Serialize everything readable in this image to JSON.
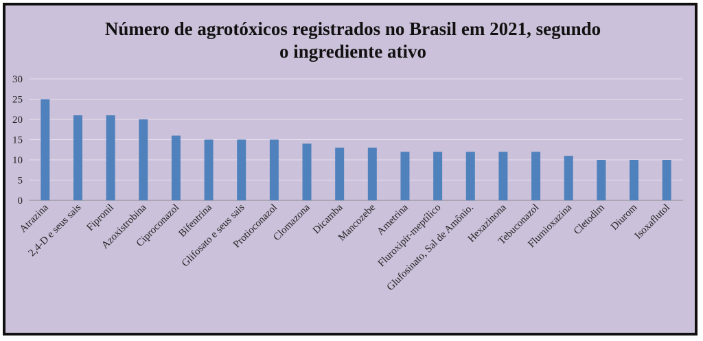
{
  "chart_data": {
    "type": "bar",
    "title_line1": "Número de agrotóxicos registrados no Brasil em 2021, segundo",
    "title_line2": "o ingrediente ativo",
    "xlabel": "",
    "ylabel": "",
    "ylim": [
      0,
      30
    ],
    "yticks": [
      "0",
      "5",
      "10",
      "15",
      "20",
      "25",
      "30"
    ],
    "grid": true,
    "categories": [
      "Atrazina",
      "2,4-D e seus sais",
      "Fipronil",
      "Azoxistrobina",
      "Ciproconazol",
      "Bifentrina",
      "Glifosato e seus sais",
      "Protioconazol",
      "Clomazona",
      "Dicamba",
      "Mancozebe",
      "Ametrina",
      "Fluroxipir-meptílico",
      "Glufosinato, Sal de Amônio.",
      "Hexazinona",
      "Tebuconazol",
      "Flumioxazina",
      "Cletodim",
      "Diurom",
      "Isoxaflutol"
    ],
    "values": [
      25,
      21,
      21,
      20,
      16,
      15,
      15,
      15,
      14,
      13,
      13,
      12,
      12,
      12,
      12,
      12,
      11,
      10,
      10,
      10
    ],
    "bar_color": "#4f81bd",
    "background_color": "#ccc1da"
  }
}
